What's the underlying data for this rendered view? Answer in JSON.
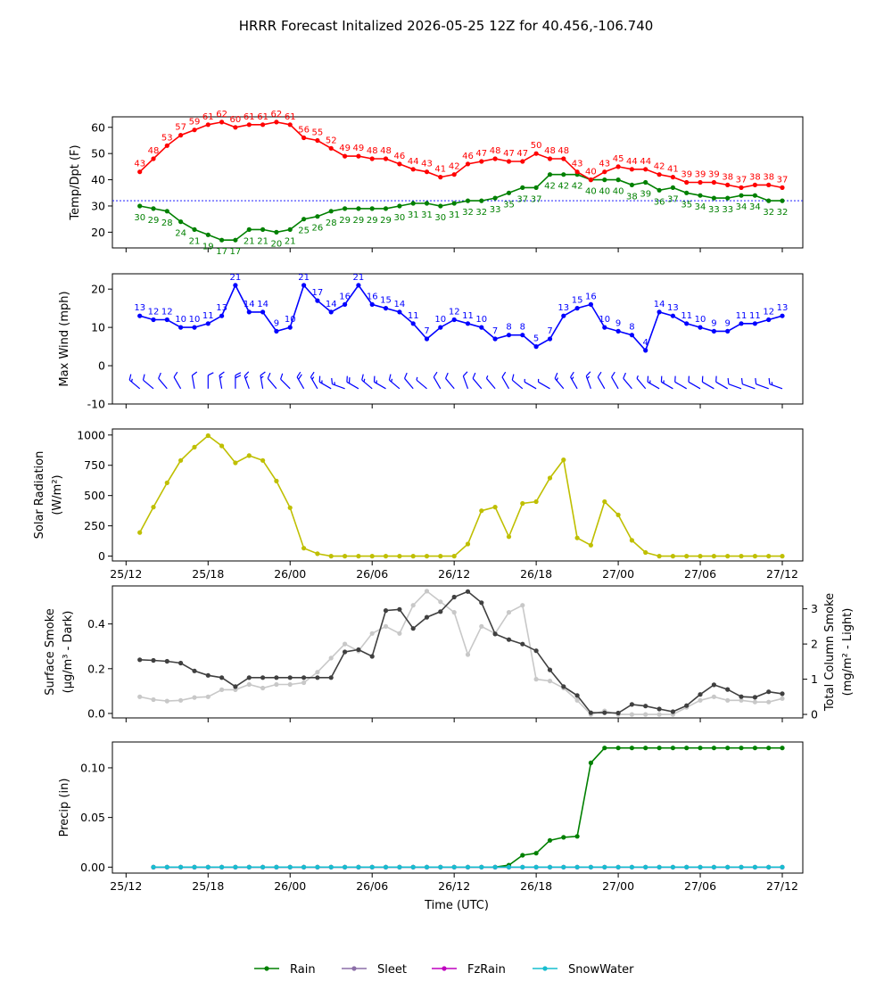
{
  "title": "HRRR Forecast Initalized 2026-05-25 12Z for 40.456,-106.740",
  "x_axis": {
    "label": "Time (UTC)",
    "ticks": [
      {
        "hour": 0,
        "label": "25/12"
      },
      {
        "hour": 6,
        "label": "25/18"
      },
      {
        "hour": 12,
        "label": "26/00"
      },
      {
        "hour": 18,
        "label": "26/06"
      },
      {
        "hour": 24,
        "label": "26/12"
      },
      {
        "hour": 30,
        "label": "26/18"
      },
      {
        "hour": 36,
        "label": "27/00"
      },
      {
        "hour": 42,
        "label": "27/06"
      },
      {
        "hour": 48,
        "label": "27/12"
      }
    ]
  },
  "legend": [
    "Rain",
    "Sleet",
    "FzRain",
    "SnowWater"
  ],
  "colors": {
    "temp": "#ff0000",
    "dewpoint": "#008000",
    "freezing_line": "#0000ff",
    "wind": "#0000ff",
    "solar": "#bfbf00",
    "smoke_dark": "#404040",
    "smoke_light": "#c8c8c8",
    "rain": "#008000",
    "sleet": "#8c6fa8",
    "fzrain": "#bf00bf",
    "snowwater": "#17becf"
  },
  "chart_data": [
    {
      "type": "line",
      "panel": "temperature",
      "ylabel": "Temp/Dpt (F)",
      "ylim": [
        14,
        64
      ],
      "yticks": [
        20,
        30,
        40,
        50,
        60
      ],
      "x_start_hour": 1,
      "reference_line": 32,
      "series": [
        {
          "key": "temp",
          "values": [
            43,
            48,
            53,
            57,
            59,
            61,
            62,
            60,
            61,
            61,
            62,
            61,
            56,
            55,
            52,
            49,
            49,
            48,
            48,
            46,
            44,
            43,
            41,
            42,
            46,
            47,
            48,
            47,
            47,
            50,
            48,
            48,
            43,
            40,
            43,
            45,
            44,
            44,
            42,
            41,
            39,
            39,
            39,
            38,
            37,
            38,
            38,
            37
          ]
        },
        {
          "key": "dewpoint",
          "values": [
            30,
            29,
            28,
            24,
            21,
            19,
            17,
            17,
            21,
            21,
            20,
            21,
            25,
            26,
            28,
            29,
            29,
            29,
            29,
            30,
            31,
            31,
            30,
            31,
            32,
            32,
            33,
            35,
            37,
            37,
            42,
            42,
            42,
            40,
            40,
            40,
            38,
            39,
            36,
            37,
            35,
            34,
            33,
            33,
            34,
            34,
            32,
            32
          ]
        }
      ]
    },
    {
      "type": "line",
      "panel": "wind",
      "ylabel": "Max Wind (mph)",
      "ylim": [
        -10,
        24
      ],
      "yticks": [
        -10,
        0,
        10,
        20
      ],
      "x_start_hour": 1,
      "series": [
        {
          "key": "wind",
          "values": [
            13,
            12,
            12,
            10,
            10,
            11,
            13,
            21,
            14,
            14,
            9,
            10,
            21,
            17,
            14,
            16,
            21,
            16,
            15,
            14,
            11,
            7,
            10,
            12,
            11,
            10,
            7,
            8,
            8,
            5,
            7,
            13,
            15,
            16,
            10,
            9,
            8,
            4,
            14,
            13,
            11,
            10,
            9,
            9,
            11,
            11,
            12,
            13
          ]
        }
      ],
      "wind_direction_deg": [
        310,
        310,
        320,
        330,
        350,
        0,
        350,
        0,
        340,
        350,
        320,
        315,
        330,
        330,
        300,
        290,
        300,
        310,
        300,
        310,
        320,
        310,
        330,
        320,
        340,
        320,
        320,
        330,
        310,
        300,
        300,
        320,
        330,
        340,
        330,
        330,
        320,
        320,
        300,
        300,
        300,
        300,
        300,
        300,
        290,
        290,
        290,
        290
      ]
    },
    {
      "type": "line",
      "panel": "solar",
      "ylabel": "Solar Radiation",
      "ylabel_units": "(W/m²)",
      "ylim": [
        -40,
        1050
      ],
      "yticks": [
        0,
        250,
        500,
        750,
        1000
      ],
      "x_start_hour": 1,
      "series": [
        {
          "key": "solar",
          "values": [
            195,
            405,
            605,
            790,
            900,
            995,
            910,
            770,
            830,
            790,
            620,
            400,
            65,
            20,
            0,
            0,
            0,
            0,
            0,
            0,
            0,
            0,
            0,
            0,
            100,
            375,
            405,
            160,
            435,
            450,
            645,
            795,
            150,
            90,
            450,
            340,
            130,
            30,
            0,
            0,
            0,
            0,
            0,
            0,
            0,
            0,
            0,
            0
          ]
        }
      ]
    },
    {
      "type": "line",
      "panel": "smoke",
      "ylabel": "Surface Smoke",
      "ylabel_units": "(μg/m³ - Dark)",
      "ylabel_right": "Total Column Smoke",
      "ylabel_right_units": "(mg/m² - Light)",
      "ylim": [
        -0.02,
        0.57
      ],
      "yticks": [
        0.0,
        0.2,
        0.4
      ],
      "ytick_labels": [
        "0.0",
        "0.2",
        "0.4"
      ],
      "ylim_right": [
        -0.1,
        3.65
      ],
      "yticks_right": [
        0,
        1,
        2,
        3
      ],
      "x_start_hour": 1,
      "series": [
        {
          "key": "smoke_dark",
          "axis": "left",
          "values": [
            0.24,
            0.237,
            0.233,
            0.225,
            0.19,
            0.17,
            0.16,
            0.12,
            0.16,
            0.16,
            0.16,
            0.16,
            0.16,
            0.16,
            0.16,
            0.275,
            0.285,
            0.255,
            0.46,
            0.465,
            0.38,
            0.43,
            0.455,
            0.52,
            0.545,
            0.495,
            0.355,
            0.33,
            0.31,
            0.28,
            0.195,
            0.12,
            0.08,
            0.003,
            0.003,
            0.002,
            0.04,
            0.033,
            0.02,
            0.008,
            0.035,
            0.085,
            0.128,
            0.107,
            0.075,
            0.072,
            0.097,
            0.088
          ]
        },
        {
          "key": "smoke_light",
          "axis": "right",
          "values": [
            0.5,
            0.42,
            0.38,
            0.4,
            0.48,
            0.5,
            0.7,
            0.7,
            0.85,
            0.75,
            0.85,
            0.85,
            0.9,
            1.2,
            1.6,
            2.0,
            1.8,
            2.3,
            2.5,
            2.3,
            3.1,
            3.5,
            3.2,
            2.9,
            1.7,
            2.5,
            2.3,
            2.9,
            3.1,
            1.0,
            0.95,
            0.75,
            0.4,
            0.0,
            0.1,
            0.0,
            0.0,
            0.0,
            0.0,
            0.0,
            0.2,
            0.4,
            0.5,
            0.4,
            0.4,
            0.35,
            0.35,
            0.45
          ]
        }
      ]
    },
    {
      "type": "line",
      "panel": "precip",
      "ylabel": "Precip (in)",
      "ylim": [
        -0.006,
        0.126
      ],
      "yticks": [
        0.0,
        0.05,
        0.1
      ],
      "ytick_labels": [
        "0.00",
        "0.05",
        "0.10"
      ],
      "x_start_hour": 2,
      "series": [
        {
          "key": "rain",
          "name": "Rain",
          "values": [
            0,
            0,
            0,
            0,
            0,
            0,
            0,
            0,
            0,
            0,
            0,
            0,
            0,
            0,
            0,
            0,
            0,
            0,
            0,
            0,
            0,
            0,
            0,
            0,
            0,
            0,
            0.002,
            0.012,
            0.014,
            0.027,
            0.03,
            0.031,
            0.105,
            0.12,
            0.12,
            0.12,
            0.12,
            0.12,
            0.12,
            0.12,
            0.12,
            0.12,
            0.12,
            0.12,
            0.12,
            0.12,
            0.12
          ]
        },
        {
          "key": "sleet",
          "name": "Sleet",
          "values": [
            0,
            0,
            0,
            0,
            0,
            0,
            0,
            0,
            0,
            0,
            0,
            0,
            0,
            0,
            0,
            0,
            0,
            0,
            0,
            0,
            0,
            0,
            0,
            0,
            0,
            0,
            0,
            0,
            0,
            0,
            0,
            0,
            0,
            0,
            0,
            0,
            0,
            0,
            0,
            0,
            0,
            0,
            0,
            0,
            0,
            0,
            0
          ]
        },
        {
          "key": "fzrain",
          "name": "FzRain",
          "values": [
            0,
            0,
            0,
            0,
            0,
            0,
            0,
            0,
            0,
            0,
            0,
            0,
            0,
            0,
            0,
            0,
            0,
            0,
            0,
            0,
            0,
            0,
            0,
            0,
            0,
            0,
            0,
            0,
            0,
            0,
            0,
            0,
            0,
            0,
            0,
            0,
            0,
            0,
            0,
            0,
            0,
            0,
            0,
            0,
            0,
            0,
            0
          ]
        },
        {
          "key": "snowwater",
          "name": "SnowWater",
          "values": [
            0,
            0,
            0,
            0,
            0,
            0,
            0,
            0,
            0,
            0,
            0,
            0,
            0,
            0,
            0,
            0,
            0,
            0,
            0,
            0,
            0,
            0,
            0,
            0,
            0,
            0,
            0,
            0,
            0,
            0,
            0,
            0,
            0,
            0,
            0,
            0,
            0,
            0,
            0,
            0,
            0,
            0,
            0,
            0,
            0,
            0,
            0
          ]
        }
      ]
    }
  ]
}
